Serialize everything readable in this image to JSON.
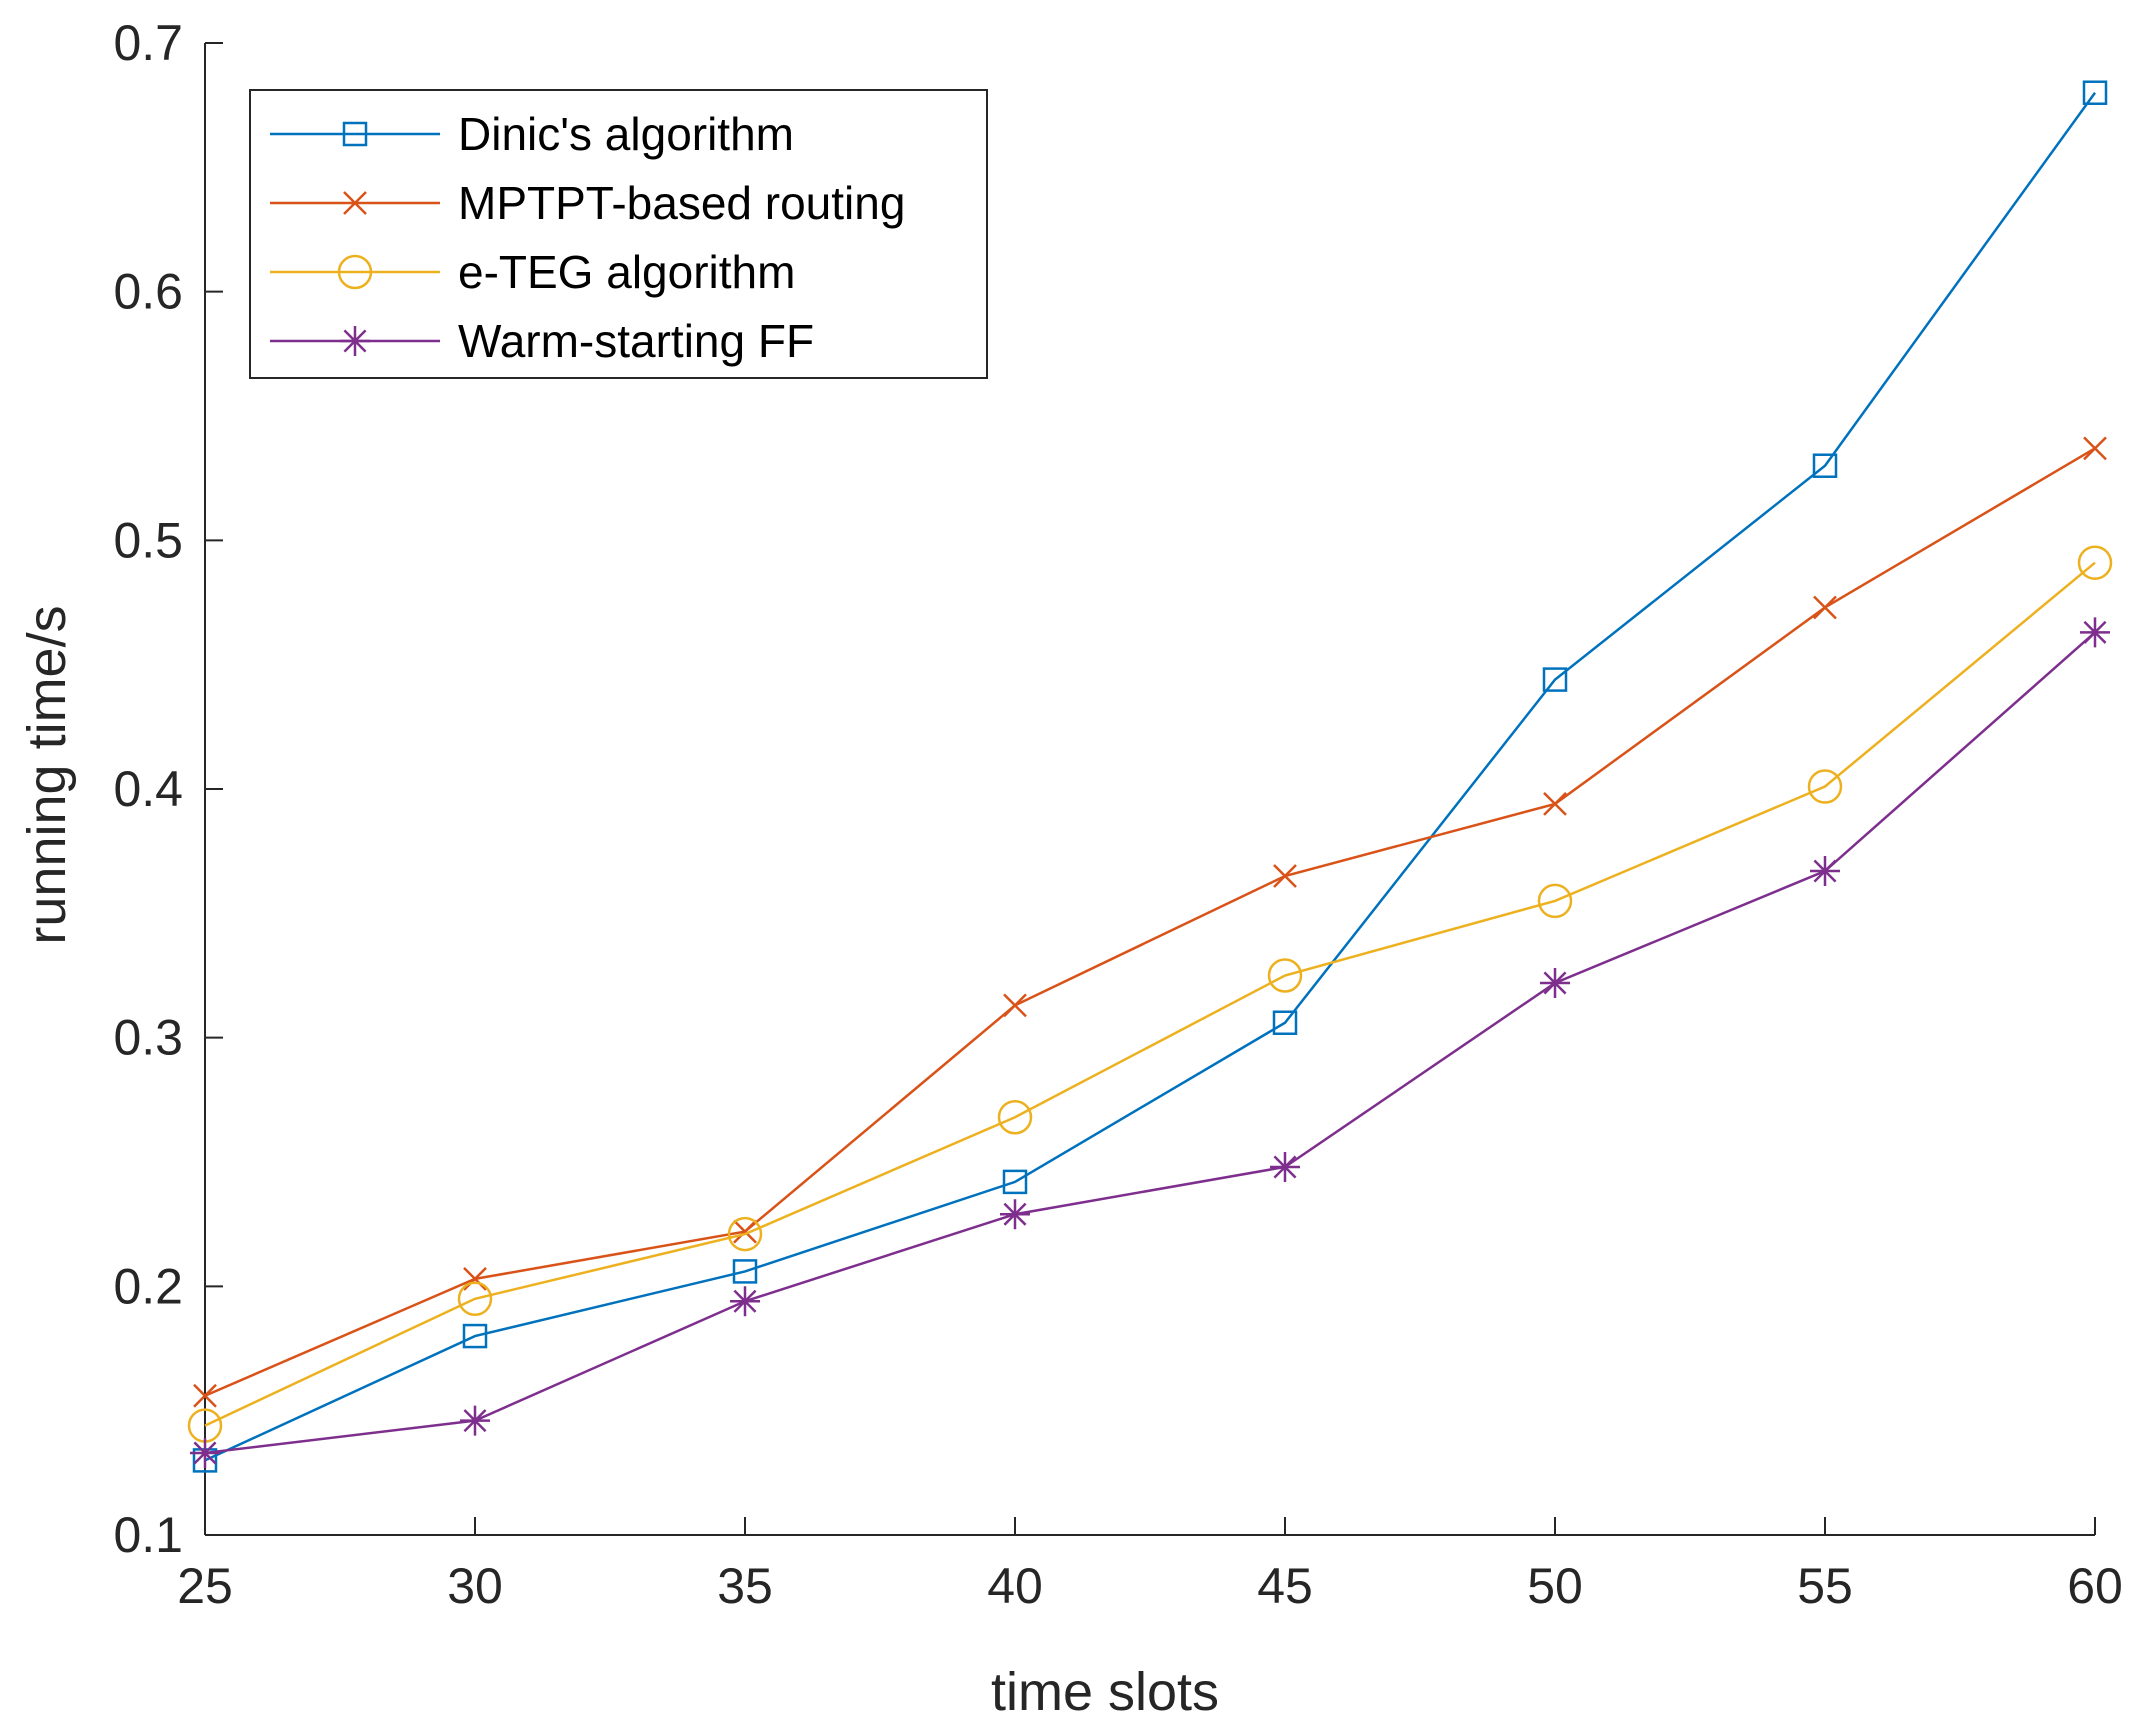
{
  "chart_data": {
    "type": "line",
    "title": "",
    "xlabel": "time slots",
    "ylabel": "running time/s",
    "x": [
      25,
      30,
      35,
      40,
      45,
      50,
      55,
      60
    ],
    "xlim": [
      25,
      60
    ],
    "ylim": [
      0.1,
      0.7
    ],
    "xticks": [
      "25",
      "30",
      "35",
      "40",
      "45",
      "50",
      "55",
      "60"
    ],
    "yticks": [
      "0.1",
      "0.2",
      "0.3",
      "0.4",
      "0.5",
      "0.6",
      "0.7"
    ],
    "grid": false,
    "legend_position": "top-left",
    "series": [
      {
        "name": "Dinic's algorithm",
        "marker": "square",
        "color": "#0072BD",
        "values": [
          0.13,
          0.18,
          0.206,
          0.242,
          0.306,
          0.444,
          0.53,
          0.68
        ]
      },
      {
        "name": "MPTPT-based routing",
        "marker": "x",
        "color": "#D95319",
        "values": [
          0.156,
          0.203,
          0.222,
          0.313,
          0.365,
          0.394,
          0.473,
          0.537
        ]
      },
      {
        "name": "e-TEG algorithm",
        "marker": "circle",
        "color": "#EDB120",
        "values": [
          0.144,
          0.195,
          0.221,
          0.268,
          0.325,
          0.355,
          0.401,
          0.491
        ]
      },
      {
        "name": "Warm-starting FF",
        "marker": "asterisk",
        "color": "#7E2F8E",
        "values": [
          0.133,
          0.146,
          0.194,
          0.229,
          0.248,
          0.322,
          0.367,
          0.463
        ]
      }
    ]
  }
}
